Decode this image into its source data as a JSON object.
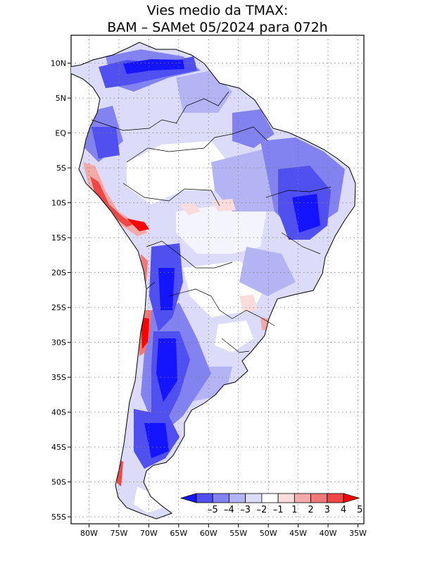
{
  "title": {
    "line1": "Vies medio da TMAX:",
    "line2": "BAM – SAMet 05/2024  para 072h"
  },
  "map": {
    "lon_range": [
      -83,
      -34
    ],
    "lat_range": [
      -56,
      14
    ],
    "x_ticks": [
      -80,
      -75,
      -70,
      -65,
      -60,
      -55,
      -50,
      -45,
      -40,
      -35
    ],
    "x_tick_labels": [
      "80W",
      "75W",
      "70W",
      "65W",
      "60W",
      "55W",
      "50W",
      "45W",
      "40W",
      "35W"
    ],
    "y_ticks": [
      10,
      5,
      0,
      -5,
      -10,
      -15,
      -20,
      -25,
      -30,
      -35,
      -40,
      -45,
      -50,
      -55
    ],
    "y_tick_labels": [
      "10N",
      "5N",
      "EQ",
      "5S",
      "10S",
      "15S",
      "20S",
      "25S",
      "30S",
      "35S",
      "40S",
      "45S",
      "50S",
      "55S"
    ]
  },
  "colorbar": {
    "labels": [
      "–5",
      "–4",
      "–3",
      "–2",
      "–1",
      "1",
      "2",
      "3",
      "4",
      "5"
    ],
    "colors": [
      "#1414ff",
      "#5050f0",
      "#8282f0",
      "#b4b4f5",
      "#dcdcfa",
      "#ffffff",
      "#fadcdc",
      "#f5aaaa",
      "#f07878",
      "#f04646",
      "#ff0000"
    ]
  }
}
